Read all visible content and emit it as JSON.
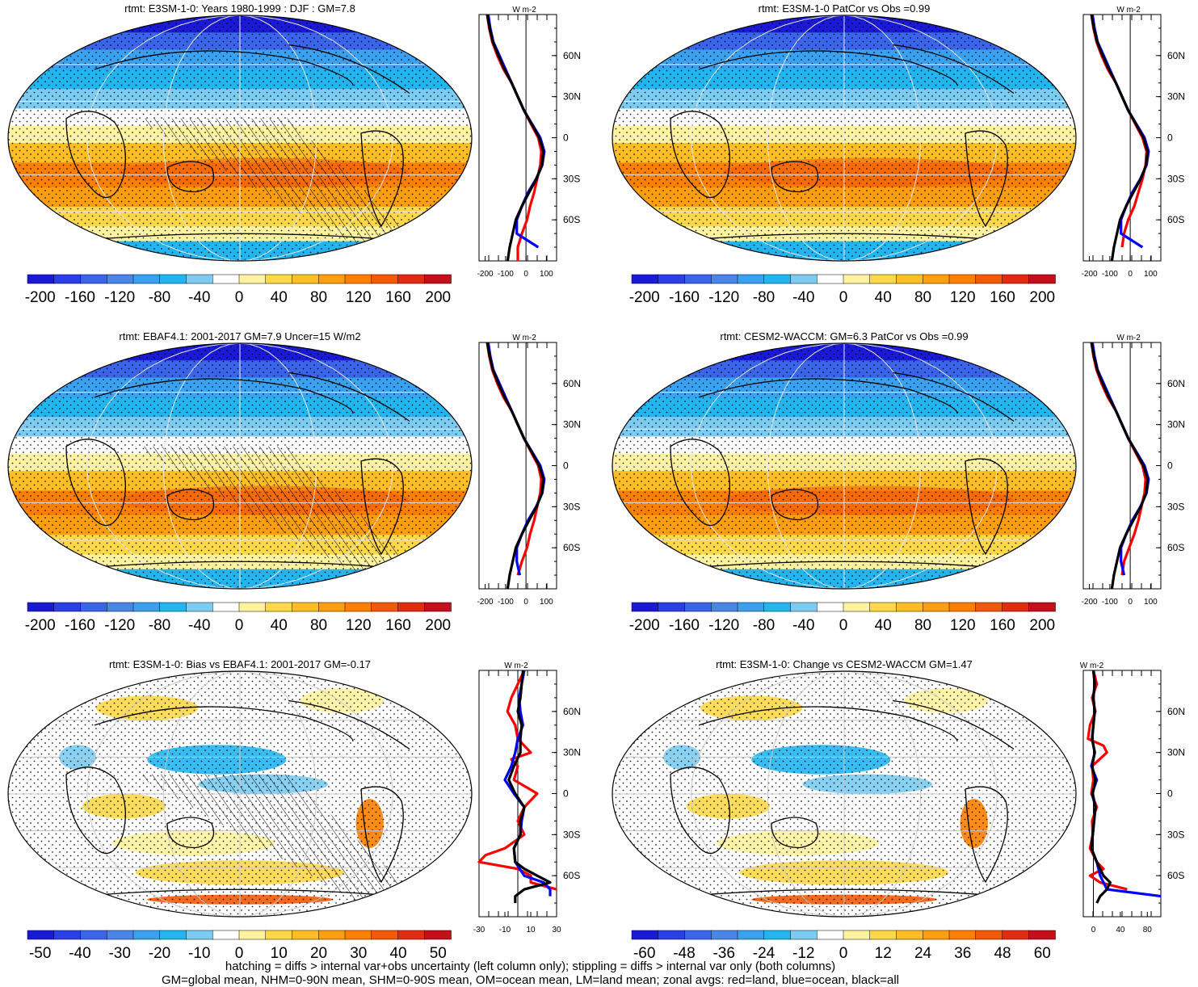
{
  "chart_data": [
    {
      "type": "heatmap",
      "title": "rtmt: E3SM-1-0: Years 1980-1999 : DJF : GM=7.8",
      "colorbar": {
        "ticks": [
          "-200",
          "-160",
          "-120",
          "-80",
          "-40",
          "0",
          "40",
          "80",
          "120",
          "160",
          "200"
        ]
      },
      "zonal_axis": {
        "units": "W m-2",
        "ticks": [
          "-200",
          "-100",
          "0",
          "100"
        ],
        "xlim": [
          -230,
          150
        ]
      },
      "lat_labels": [
        "60N",
        "30N",
        "0",
        "30S",
        "60S"
      ],
      "series": [
        {
          "name": "red=land",
          "lat": [
            90,
            80,
            70,
            60,
            50,
            40,
            30,
            20,
            10,
            0,
            -10,
            -20,
            -30,
            -40,
            -50,
            -60,
            -70,
            -80,
            -90
          ],
          "values": [
            -190,
            -180,
            -165,
            -140,
            -110,
            -70,
            -40,
            -10,
            25,
            60,
            75,
            70,
            55,
            40,
            20,
            5,
            -20,
            -40,
            -40
          ]
        },
        {
          "name": "blue=ocean",
          "lat": [
            90,
            80,
            70,
            60,
            50,
            40,
            30,
            20,
            10,
            0,
            -10,
            -20,
            -30,
            -40,
            -50,
            -60,
            -70,
            -80
          ],
          "values": [
            -185,
            -175,
            -160,
            -130,
            -100,
            -70,
            -40,
            -10,
            30,
            70,
            90,
            80,
            50,
            10,
            -20,
            -45,
            -45,
            60
          ]
        },
        {
          "name": "black=all",
          "lat": [
            90,
            80,
            70,
            60,
            50,
            40,
            30,
            20,
            10,
            0,
            -10,
            -20,
            -30,
            -40,
            -50,
            -60,
            -70,
            -80,
            -90
          ],
          "values": [
            -190,
            -178,
            -162,
            -135,
            -105,
            -70,
            -40,
            -10,
            28,
            65,
            85,
            78,
            52,
            15,
            -20,
            -50,
            -65,
            -80,
            -90
          ]
        }
      ]
    },
    {
      "type": "heatmap",
      "title": "rtmt: E3SM-1-0 PatCor vs Obs =0.99",
      "colorbar": {
        "ticks": [
          "-200",
          "-160",
          "-120",
          "-80",
          "-40",
          "0",
          "40",
          "80",
          "120",
          "160",
          "200"
        ]
      },
      "zonal_axis": {
        "units": "W m-2",
        "ticks": [
          "-200",
          "-100",
          "0",
          "100"
        ],
        "xlim": [
          -230,
          150
        ]
      },
      "lat_labels": [
        "60N",
        "30N",
        "0",
        "30S",
        "60S"
      ],
      "series": [
        {
          "name": "red=land",
          "lat": [
            90,
            80,
            70,
            60,
            50,
            40,
            30,
            20,
            10,
            0,
            -10,
            -20,
            -30,
            -40,
            -50,
            -60,
            -70,
            -80
          ],
          "values": [
            -190,
            -180,
            -165,
            -140,
            -110,
            -70,
            -40,
            -10,
            25,
            60,
            80,
            75,
            60,
            40,
            20,
            -10,
            -30,
            -40
          ]
        },
        {
          "name": "blue=ocean",
          "lat": [
            90,
            80,
            70,
            60,
            50,
            40,
            30,
            20,
            10,
            0,
            -10,
            -20,
            -30,
            -40,
            -50,
            -60,
            -70,
            -80
          ],
          "values": [
            -185,
            -175,
            -160,
            -130,
            -100,
            -70,
            -40,
            -10,
            30,
            70,
            90,
            80,
            50,
            10,
            -20,
            -45,
            -45,
            60
          ]
        },
        {
          "name": "black=all",
          "lat": [
            90,
            80,
            70,
            60,
            50,
            40,
            30,
            20,
            10,
            0,
            -10,
            -20,
            -30,
            -40,
            -50,
            -60,
            -70,
            -80,
            -90
          ],
          "values": [
            -190,
            -178,
            -162,
            -135,
            -105,
            -70,
            -40,
            -10,
            28,
            65,
            85,
            78,
            52,
            15,
            -20,
            -50,
            -65,
            -80,
            -90
          ]
        }
      ]
    },
    {
      "type": "heatmap",
      "title": "rtmt: EBAF4.1: 2001-2017 GM=7.9 Uncer=15 W/m2",
      "colorbar": {
        "ticks": [
          "-200",
          "-160",
          "-120",
          "-80",
          "-40",
          "0",
          "40",
          "80",
          "120",
          "160",
          "200"
        ]
      },
      "zonal_axis": {
        "units": "W m-2",
        "ticks": [
          "-200",
          "-100",
          "0",
          "100"
        ],
        "xlim": [
          -230,
          150
        ]
      },
      "lat_labels": [
        "60N",
        "30N",
        "0",
        "30S",
        "60S"
      ],
      "series": [
        {
          "name": "red=land",
          "lat": [
            90,
            80,
            70,
            60,
            50,
            40,
            30,
            20,
            10,
            0,
            -10,
            -20,
            -30,
            -40,
            -50,
            -60,
            -70,
            -80
          ],
          "values": [
            -190,
            -180,
            -165,
            -140,
            -110,
            -70,
            -40,
            -10,
            25,
            60,
            75,
            70,
            55,
            40,
            20,
            5,
            -20,
            -40
          ]
        },
        {
          "name": "blue=ocean",
          "lat": [
            90,
            80,
            70,
            60,
            50,
            40,
            30,
            20,
            10,
            0,
            -10,
            -20,
            -30,
            -40,
            -50,
            -60,
            -70,
            -80
          ],
          "values": [
            -185,
            -175,
            -160,
            -130,
            -100,
            -70,
            -40,
            -10,
            30,
            70,
            90,
            80,
            50,
            10,
            -20,
            -45,
            -45,
            -30
          ]
        },
        {
          "name": "black=all",
          "lat": [
            90,
            80,
            70,
            60,
            50,
            40,
            30,
            20,
            10,
            0,
            -10,
            -20,
            -30,
            -40,
            -50,
            -60,
            -70,
            -80,
            -90
          ],
          "values": [
            -190,
            -178,
            -162,
            -135,
            -105,
            -70,
            -40,
            -10,
            28,
            65,
            85,
            78,
            52,
            15,
            -20,
            -50,
            -65,
            -80,
            -90
          ]
        }
      ]
    },
    {
      "type": "heatmap",
      "title": "rtmt: CESM2-WACCM: GM=6.3 PatCor vs Obs =0.99",
      "colorbar": {
        "ticks": [
          "-200",
          "-160",
          "-120",
          "-80",
          "-40",
          "0",
          "40",
          "80",
          "120",
          "160",
          "200"
        ]
      },
      "zonal_axis": {
        "units": "W m-2",
        "ticks": [
          "-200",
          "-100",
          "0",
          "100"
        ],
        "xlim": [
          -230,
          150
        ]
      },
      "lat_labels": [
        "60N",
        "30N",
        "0",
        "30S",
        "60S"
      ],
      "series": [
        {
          "name": "red=land",
          "lat": [
            90,
            80,
            70,
            60,
            50,
            40,
            30,
            20,
            10,
            0,
            -10,
            -20,
            -30,
            -40,
            -50,
            -60,
            -70,
            -80
          ],
          "values": [
            -190,
            -180,
            -165,
            -140,
            -110,
            -70,
            -40,
            -10,
            25,
            60,
            75,
            70,
            55,
            40,
            20,
            -5,
            -30,
            -40
          ]
        },
        {
          "name": "blue=ocean",
          "lat": [
            90,
            80,
            70,
            60,
            50,
            40,
            30,
            20,
            10,
            0,
            -10,
            -20,
            -30,
            -40,
            -50,
            -60,
            -70,
            -80
          ],
          "values": [
            -185,
            -175,
            -160,
            -130,
            -100,
            -70,
            -40,
            -10,
            30,
            70,
            90,
            80,
            50,
            10,
            -20,
            -45,
            -45,
            -30
          ]
        },
        {
          "name": "black=all",
          "lat": [
            90,
            80,
            70,
            60,
            50,
            40,
            30,
            20,
            10,
            0,
            -10,
            -20,
            -30,
            -40,
            -50,
            -60,
            -70,
            -80,
            -90
          ],
          "values": [
            -190,
            -178,
            -162,
            -135,
            -105,
            -70,
            -40,
            -10,
            28,
            65,
            85,
            78,
            52,
            15,
            -20,
            -50,
            -65,
            -80,
            -90
          ]
        }
      ]
    },
    {
      "type": "heatmap",
      "title": "rtmt: E3SM-1-0: Bias vs EBAF4.1: 2001-2017 GM=-0.17",
      "colorbar": {
        "ticks": [
          "-50",
          "-40",
          "-30",
          "-20",
          "-10",
          "0",
          "10",
          "20",
          "30",
          "40",
          "50"
        ]
      },
      "zonal_axis": {
        "units": "W m-2",
        "ticks": [
          "-30",
          "-10",
          "10",
          "30"
        ],
        "xlim": [
          -30,
          30
        ]
      },
      "lat_labels": [
        "60N",
        "30N",
        "0",
        "30S",
        "60S"
      ],
      "series": [
        {
          "name": "red=land",
          "lat": [
            90,
            80,
            70,
            60,
            50,
            40,
            30,
            25,
            20,
            10,
            0,
            -10,
            -20,
            -30,
            -40,
            -45,
            -50,
            -55,
            -60,
            -65,
            -70
          ],
          "values": [
            5,
            0,
            -5,
            -8,
            -2,
            0,
            10,
            -5,
            0,
            -3,
            15,
            5,
            0,
            5,
            -10,
            -25,
            -30,
            0,
            10,
            10,
            30
          ]
        },
        {
          "name": "blue=ocean",
          "lat": [
            90,
            80,
            70,
            60,
            50,
            40,
            30,
            20,
            10,
            0,
            -10,
            -20,
            -30,
            -40,
            -50,
            -60,
            -65,
            -70,
            -75
          ],
          "values": [
            5,
            3,
            1,
            2,
            4,
            0,
            -2,
            -5,
            -10,
            -3,
            5,
            3,
            2,
            -3,
            -2,
            5,
            20,
            25,
            25
          ]
        },
        {
          "name": "black=all",
          "lat": [
            90,
            80,
            70,
            60,
            50,
            40,
            30,
            20,
            10,
            0,
            -10,
            -20,
            -30,
            -40,
            -50,
            -55,
            -60,
            -65,
            -70,
            -75,
            -80
          ],
          "values": [
            4,
            3,
            2,
            0,
            3,
            2,
            2,
            -3,
            -7,
            -2,
            5,
            2,
            2,
            -3,
            -2,
            5,
            15,
            25,
            5,
            -2,
            -2
          ]
        }
      ]
    },
    {
      "type": "heatmap",
      "title": "rtmt: E3SM-1-0: Change vs CESM2-WACCM GM=1.47",
      "colorbar": {
        "ticks": [
          "-60",
          "-48",
          "-36",
          "-24",
          "-12",
          "0",
          "12",
          "24",
          "36",
          "48",
          "60"
        ]
      },
      "zonal_axis": {
        "units": "W m-2",
        "ticks": [
          "0",
          "40",
          "80"
        ],
        "xlim": [
          -15,
          100
        ]
      },
      "lat_labels": [
        "60N",
        "30N",
        "0",
        "30S",
        "60S"
      ],
      "series": [
        {
          "name": "red=land",
          "lat": [
            90,
            80,
            70,
            60,
            50,
            40,
            35,
            30,
            20,
            10,
            0,
            -10,
            -20,
            -30,
            -40,
            -50,
            -55,
            -60,
            -65,
            -70
          ],
          "values": [
            0,
            5,
            -2,
            3,
            -5,
            -8,
            15,
            20,
            -2,
            0,
            -3,
            5,
            -2,
            -1,
            -5,
            5,
            15,
            -5,
            10,
            50
          ]
        },
        {
          "name": "blue=ocean",
          "lat": [
            90,
            80,
            70,
            60,
            50,
            40,
            30,
            20,
            10,
            0,
            -10,
            -20,
            -30,
            -40,
            -50,
            -60,
            -70,
            -75
          ],
          "values": [
            0,
            2,
            0,
            2,
            0,
            -2,
            2,
            -3,
            5,
            -2,
            3,
            1,
            -1,
            -3,
            5,
            10,
            20,
            100
          ]
        },
        {
          "name": "black=all",
          "lat": [
            90,
            80,
            70,
            60,
            50,
            40,
            30,
            20,
            10,
            0,
            -10,
            -20,
            -30,
            -40,
            -50,
            -60,
            -65,
            -70,
            -75,
            -80
          ],
          "values": [
            0,
            2,
            0,
            2,
            0,
            -2,
            2,
            -2,
            3,
            -1,
            3,
            1,
            -1,
            -3,
            5,
            15,
            25,
            20,
            10,
            5
          ]
        }
      ]
    }
  ],
  "footer": {
    "line1": "hatching = diffs > internal var+obs uncertainty (left column only); stippling = diffs > internal var only (both columns)",
    "line2": "GM=global mean, NHM=0-90N mean, SHM=0-90S mean, OM=ocean mean, LM=land mean; zonal avgs: red=land, blue=ocean, black=all"
  },
  "colors": {
    "scale": [
      "#1a1ad6",
      "#2a3fe6",
      "#3a64ea",
      "#4a86e8",
      "#3aa1f0",
      "#23b5f0",
      "#7cccf2",
      "#ffffff",
      "#fff3a0",
      "#ffd84a",
      "#ffbd26",
      "#ff9e10",
      "#ff7f00",
      "#f25a0a",
      "#e22c12",
      "#c4101a"
    ],
    "land": "#ff0000",
    "ocean": "#0000ff",
    "all": "#000000"
  }
}
